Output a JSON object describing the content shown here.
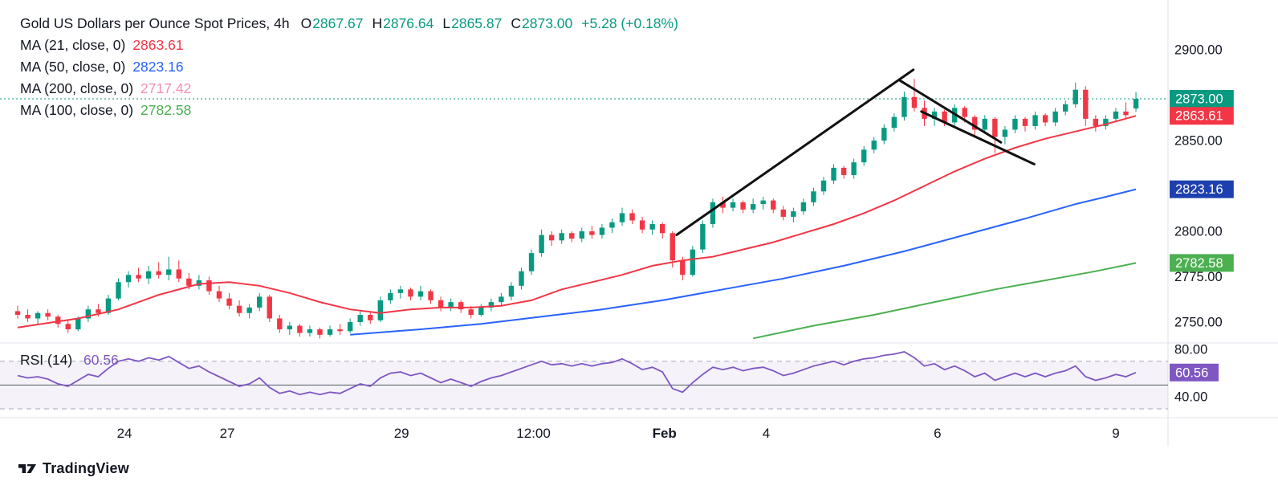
{
  "header": {
    "title": "Gold US Dollars per Ounce Spot Prices, 4h",
    "ohlc": [
      {
        "k": "O",
        "v": "2867.67"
      },
      {
        "k": "H",
        "v": "2876.64"
      },
      {
        "k": "L",
        "v": "2865.87"
      },
      {
        "k": "C",
        "v": "2873.00"
      }
    ],
    "change": "+5.28 (+0.18%)",
    "value_color": "#089981"
  },
  "legend": {
    "ma": [
      {
        "label": "MA (21, close, 0)",
        "value": "2863.61",
        "color": "#F23645"
      },
      {
        "label": "MA (50, close, 0)",
        "value": "2823.16",
        "color": "#2962FF"
      },
      {
        "label": "MA (200, close, 0)",
        "value": "2717.42",
        "color": "#F48FB1"
      },
      {
        "label": "MA (100, close, 0)",
        "value": "2782.58",
        "color": "#4CAF50"
      }
    ]
  },
  "rsi_legend": {
    "label": "RSI (14)",
    "value": "60.56",
    "color": "#7E57C2"
  },
  "branding": {
    "name": "TradingView"
  },
  "chart_data": {
    "type": "candlestick",
    "title": "Gold US Dollars per Ounce Spot Prices",
    "timeframe": "4h",
    "current": {
      "open": 2867.67,
      "high": 2876.64,
      "low": 2865.87,
      "close": 2873.0,
      "change": "+5.28 (+0.18%)"
    },
    "current_price": 2873.0,
    "price_ticks": [
      2900,
      2850,
      2800,
      2775,
      2750
    ],
    "y_range_visible": [
      2736,
      2903
    ],
    "candles": [
      [
        2756,
        2759,
        2752,
        2754
      ],
      [
        2754,
        2757,
        2750,
        2752
      ],
      [
        2752,
        2756,
        2749,
        2755
      ],
      [
        2755,
        2757,
        2751,
        2753
      ],
      [
        2753,
        2754,
        2747,
        2749
      ],
      [
        2749,
        2751,
        2744,
        2746
      ],
      [
        2746,
        2753,
        2745,
        2752
      ],
      [
        2752,
        2759,
        2750,
        2757
      ],
      [
        2757,
        2760,
        2753,
        2755
      ],
      [
        2755,
        2765,
        2754,
        2763
      ],
      [
        2763,
        2774,
        2762,
        2772
      ],
      [
        2772,
        2778,
        2769,
        2776
      ],
      [
        2776,
        2780,
        2772,
        2774
      ],
      [
        2774,
        2781,
        2771,
        2778
      ],
      [
        2778,
        2783,
        2774,
        2776
      ],
      [
        2776,
        2786,
        2773,
        2779
      ],
      [
        2779,
        2784,
        2772,
        2774
      ],
      [
        2774,
        2777,
        2768,
        2770
      ],
      [
        2770,
        2776,
        2768,
        2773
      ],
      [
        2773,
        2775,
        2765,
        2767
      ],
      [
        2767,
        2770,
        2761,
        2763
      ],
      [
        2763,
        2766,
        2757,
        2759
      ],
      [
        2759,
        2762,
        2753,
        2755
      ],
      [
        2755,
        2760,
        2752,
        2758
      ],
      [
        2758,
        2766,
        2756,
        2764
      ],
      [
        2764,
        2765,
        2750,
        2752
      ],
      [
        2752,
        2754,
        2744,
        2746
      ],
      [
        2746,
        2750,
        2743,
        2748
      ],
      [
        2748,
        2749,
        2742,
        2744
      ],
      [
        2744,
        2748,
        2742,
        2746
      ],
      [
        2746,
        2747,
        2741,
        2743
      ],
      [
        2743,
        2748,
        2742,
        2746
      ],
      [
        2746,
        2749,
        2743,
        2745
      ],
      [
        2745,
        2752,
        2744,
        2750
      ],
      [
        2750,
        2756,
        2748,
        2754
      ],
      [
        2754,
        2756,
        2749,
        2751
      ],
      [
        2751,
        2764,
        2750,
        2762
      ],
      [
        2762,
        2768,
        2760,
        2766
      ],
      [
        2766,
        2770,
        2763,
        2768
      ],
      [
        2768,
        2769,
        2762,
        2764
      ],
      [
        2764,
        2770,
        2762,
        2767
      ],
      [
        2767,
        2768,
        2760,
        2762
      ],
      [
        2762,
        2764,
        2756,
        2758
      ],
      [
        2758,
        2763,
        2756,
        2761
      ],
      [
        2761,
        2762,
        2755,
        2757
      ],
      [
        2757,
        2759,
        2752,
        2754
      ],
      [
        2754,
        2760,
        2753,
        2758
      ],
      [
        2758,
        2763,
        2756,
        2761
      ],
      [
        2761,
        2766,
        2759,
        2764
      ],
      [
        2764,
        2772,
        2762,
        2770
      ],
      [
        2770,
        2780,
        2768,
        2778
      ],
      [
        2778,
        2790,
        2776,
        2788
      ],
      [
        2788,
        2801,
        2786,
        2798
      ],
      [
        2798,
        2800,
        2792,
        2795
      ],
      [
        2795,
        2801,
        2793,
        2799
      ],
      [
        2799,
        2800,
        2794,
        2796
      ],
      [
        2796,
        2802,
        2794,
        2800
      ],
      [
        2800,
        2803,
        2796,
        2798
      ],
      [
        2798,
        2804,
        2796,
        2802
      ],
      [
        2802,
        2807,
        2799,
        2805
      ],
      [
        2805,
        2813,
        2803,
        2810
      ],
      [
        2810,
        2812,
        2804,
        2806
      ],
      [
        2806,
        2808,
        2799,
        2801
      ],
      [
        2801,
        2806,
        2798,
        2804
      ],
      [
        2804,
        2805,
        2796,
        2799
      ],
      [
        2799,
        2800,
        2780,
        2784
      ],
      [
        2784,
        2786,
        2773,
        2776
      ],
      [
        2776,
        2792,
        2775,
        2790
      ],
      [
        2790,
        2806,
        2788,
        2804
      ],
      [
        2804,
        2818,
        2802,
        2816
      ],
      [
        2816,
        2819,
        2810,
        2813
      ],
      [
        2813,
        2818,
        2811,
        2816
      ],
      [
        2816,
        2817,
        2810,
        2812
      ],
      [
        2812,
        2818,
        2810,
        2815
      ],
      [
        2815,
        2819,
        2812,
        2817
      ],
      [
        2817,
        2818,
        2810,
        2812
      ],
      [
        2812,
        2814,
        2806,
        2808
      ],
      [
        2808,
        2813,
        2805,
        2811
      ],
      [
        2811,
        2818,
        2809,
        2816
      ],
      [
        2816,
        2824,
        2814,
        2822
      ],
      [
        2822,
        2830,
        2820,
        2828
      ],
      [
        2828,
        2837,
        2826,
        2835
      ],
      [
        2835,
        2836,
        2829,
        2831
      ],
      [
        2831,
        2840,
        2829,
        2838
      ],
      [
        2838,
        2847,
        2836,
        2845
      ],
      [
        2845,
        2852,
        2843,
        2850
      ],
      [
        2850,
        2859,
        2848,
        2857
      ],
      [
        2857,
        2865,
        2855,
        2863
      ],
      [
        2863,
        2877,
        2861,
        2874
      ],
      [
        2874,
        2884,
        2866,
        2868
      ],
      [
        2868,
        2872,
        2858,
        2862
      ],
      [
        2862,
        2868,
        2858,
        2866
      ],
      [
        2866,
        2867,
        2858,
        2860
      ],
      [
        2860,
        2870,
        2858,
        2868
      ],
      [
        2868,
        2869,
        2860,
        2863
      ],
      [
        2863,
        2864,
        2852,
        2856
      ],
      [
        2856,
        2864,
        2854,
        2862
      ],
      [
        2862,
        2863,
        2843,
        2852
      ],
      [
        2852,
        2858,
        2848,
        2856
      ],
      [
        2856,
        2864,
        2854,
        2862
      ],
      [
        2862,
        2863,
        2855,
        2858
      ],
      [
        2858,
        2866,
        2856,
        2864
      ],
      [
        2864,
        2865,
        2858,
        2860
      ],
      [
        2860,
        2868,
        2858,
        2866
      ],
      [
        2866,
        2872,
        2864,
        2870
      ],
      [
        2870,
        2882,
        2868,
        2878
      ],
      [
        2878,
        2880,
        2858,
        2862
      ],
      [
        2862,
        2864,
        2855,
        2858
      ],
      [
        2858,
        2864,
        2856,
        2862
      ],
      [
        2862,
        2868,
        2860,
        2866
      ],
      [
        2866,
        2871,
        2862,
        2864
      ],
      [
        2867.67,
        2876.64,
        2865.87,
        2873.0
      ]
    ],
    "overlays": {
      "ma21": {
        "period": 21,
        "last": 2863.61,
        "points": [
          [
            0,
            2747
          ],
          [
            6,
            2752
          ],
          [
            10,
            2757
          ],
          [
            14,
            2765
          ],
          [
            18,
            2771
          ],
          [
            21,
            2772
          ],
          [
            24,
            2770
          ],
          [
            27,
            2766
          ],
          [
            30,
            2761
          ],
          [
            33,
            2757
          ],
          [
            36,
            2755
          ],
          [
            39,
            2757
          ],
          [
            42,
            2758
          ],
          [
            45,
            2758
          ],
          [
            48,
            2759
          ],
          [
            51,
            2762
          ],
          [
            54,
            2768
          ],
          [
            57,
            2772
          ],
          [
            60,
            2776
          ],
          [
            63,
            2781
          ],
          [
            66,
            2784
          ],
          [
            69,
            2786
          ],
          [
            72,
            2790
          ],
          [
            75,
            2794
          ],
          [
            78,
            2799
          ],
          [
            81,
            2804
          ],
          [
            84,
            2810
          ],
          [
            87,
            2817
          ],
          [
            90,
            2825
          ],
          [
            93,
            2833
          ],
          [
            96,
            2840
          ],
          [
            99,
            2846
          ],
          [
            102,
            2851
          ],
          [
            105,
            2855
          ],
          [
            108,
            2859
          ],
          [
            111,
            2863.61
          ]
        ]
      },
      "ma50": {
        "period": 50,
        "last": 2823.16,
        "points": [
          [
            33,
            2743
          ],
          [
            40,
            2746
          ],
          [
            46,
            2749
          ],
          [
            52,
            2753
          ],
          [
            58,
            2757
          ],
          [
            64,
            2762
          ],
          [
            70,
            2768
          ],
          [
            76,
            2774
          ],
          [
            82,
            2781
          ],
          [
            88,
            2789
          ],
          [
            94,
            2798
          ],
          [
            100,
            2807
          ],
          [
            105,
            2815
          ],
          [
            108,
            2819
          ],
          [
            111,
            2823.16
          ]
        ]
      },
      "ma100": {
        "period": 100,
        "last": 2782.58,
        "points": [
          [
            73,
            2741
          ],
          [
            79,
            2748
          ],
          [
            85,
            2754
          ],
          [
            91,
            2761
          ],
          [
            97,
            2768
          ],
          [
            103,
            2774
          ],
          [
            107,
            2778
          ],
          [
            111,
            2782.58
          ]
        ]
      },
      "ma200": {
        "period": 200,
        "last": 2717.42,
        "points": []
      }
    },
    "trend_lines": [
      {
        "from": [
          65.4,
          2798
        ],
        "to": [
          88.9,
          2889
        ]
      },
      {
        "from": [
          87.6,
          2883
        ],
        "to": [
          97.6,
          2849
        ]
      },
      {
        "from": [
          89.7,
          2866
        ],
        "to": [
          100.9,
          2837
        ]
      }
    ],
    "x_ticks": [
      {
        "label": "24",
        "i": 10.6
      },
      {
        "label": "27",
        "i": 20.8
      },
      {
        "label": "29",
        "i": 38.1
      },
      {
        "label": "12:00",
        "i": 51.2
      },
      {
        "label": "Feb",
        "i": 64.2,
        "bold": true
      },
      {
        "label": "4",
        "i": 74.3
      },
      {
        "label": "6",
        "i": 91.3
      },
      {
        "label": "9",
        "i": 109
      }
    ],
    "badges": [
      {
        "name": "price-badge-current",
        "label": "2873.00",
        "value": 2873.0,
        "bg": "#089981",
        "pane": "main"
      },
      {
        "name": "price-badge-ma21",
        "label": "2863.61",
        "value": 2863.61,
        "bg": "#F23645",
        "pane": "main"
      },
      {
        "name": "price-badge-ma50",
        "label": "2823.16",
        "value": 2823.16,
        "bg": "#1E40AF",
        "pane": "main"
      },
      {
        "name": "price-badge-ma100",
        "label": "2782.58",
        "value": 2782.58,
        "bg": "#4CAF50",
        "pane": "main"
      },
      {
        "name": "rsi-badge",
        "label": "60.56",
        "value": 60.56,
        "bg": "#7E57C2",
        "pane": "rsi"
      }
    ],
    "rsi": {
      "period": 14,
      "value": 60.56,
      "ticks": [
        80,
        40
      ],
      "levels": {
        "upper": 70,
        "lower": 30,
        "mid": 50
      },
      "values": [
        58,
        56,
        57,
        55,
        51,
        49,
        54,
        59,
        57,
        64,
        70,
        72,
        70,
        73,
        71,
        74,
        69,
        64,
        66,
        61,
        57,
        53,
        49,
        51,
        56,
        48,
        43,
        45,
        42,
        44,
        42,
        44,
        43,
        47,
        51,
        49,
        56,
        60,
        61,
        58,
        60,
        56,
        52,
        55,
        52,
        49,
        53,
        56,
        58,
        61,
        64,
        67,
        70,
        67,
        68,
        66,
        68,
        66,
        68,
        69,
        72,
        68,
        63,
        65,
        61,
        47,
        44,
        52,
        59,
        65,
        63,
        65,
        62,
        64,
        65,
        62,
        58,
        60,
        63,
        66,
        68,
        70,
        67,
        70,
        72,
        73,
        75,
        76,
        78,
        73,
        66,
        68,
        63,
        66,
        62,
        57,
        60,
        54,
        57,
        60,
        57,
        60,
        57,
        60,
        62,
        66,
        57,
        54,
        56,
        59,
        57,
        60.56
      ]
    },
    "colors": {
      "up": "#089981",
      "down": "#F23645",
      "ma21": "#F23645",
      "ma50": "#2962FF",
      "ma100": "#4CAF50",
      "ma200": "#F48FB1",
      "rsi": "#7E57C2",
      "trend": "#111111",
      "axis_text": "#131722",
      "separator": "#E0E3EB",
      "band_fill": "rgba(126,87,194,0.08)",
      "band_dash": "#A6A9B8",
      "band_mid": "#555B66",
      "current_line": "#089981",
      "badge_text": "#FFFFFF"
    }
  }
}
